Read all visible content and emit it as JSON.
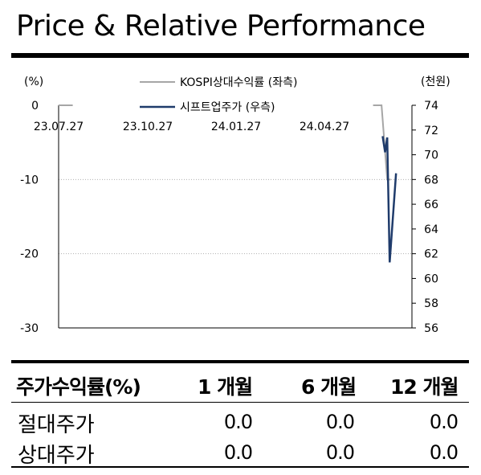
{
  "title": "Price & Relative Performance",
  "chart_data": {
    "type": "line",
    "left_axis_unit": "(%)",
    "right_axis_unit": "(천원)",
    "left_ylim": [
      -30,
      0
    ],
    "left_ticks": [
      "0",
      "-10",
      "-20",
      "-30"
    ],
    "right_ylim": [
      56,
      74
    ],
    "right_ticks": [
      "74",
      "72",
      "70",
      "68",
      "66",
      "64",
      "62",
      "60",
      "58",
      "56"
    ],
    "x_tick_labels": [
      "23.07.27",
      "23.10.27",
      "24.01.27",
      "24.04.27"
    ],
    "legend_placement": "top-center",
    "series": [
      {
        "name": "KOSPI상대수익률 (좌측)",
        "axis": "left",
        "color": "#a6a6a6",
        "segments": [
          [
            [
              0.0,
              0
            ],
            [
              0.04,
              0
            ]
          ],
          [
            [
              0.89,
              0
            ],
            [
              0.914,
              0
            ],
            [
              0.93,
              -10
            ],
            [
              0.94,
              -10
            ]
          ]
        ]
      },
      {
        "name": "시프트업주가 (우측)",
        "axis": "right",
        "color": "#1f3b6b",
        "points": [
          [
            0.917,
            71.5
          ],
          [
            0.924,
            70.2
          ],
          [
            0.93,
            71.4
          ],
          [
            0.937,
            61.3
          ],
          [
            0.955,
            68.5
          ]
        ]
      }
    ],
    "grid": "horizontal-dotted"
  },
  "table": {
    "headers": [
      "주가수익률(%)",
      "1 개월",
      "6 개월",
      "12 개월"
    ],
    "rows": [
      {
        "label": "절대주가",
        "values": [
          "0.0",
          "0.0",
          "0.0"
        ]
      },
      {
        "label": "상대주가",
        "values": [
          "0.0",
          "0.0",
          "0.0"
        ]
      }
    ]
  }
}
